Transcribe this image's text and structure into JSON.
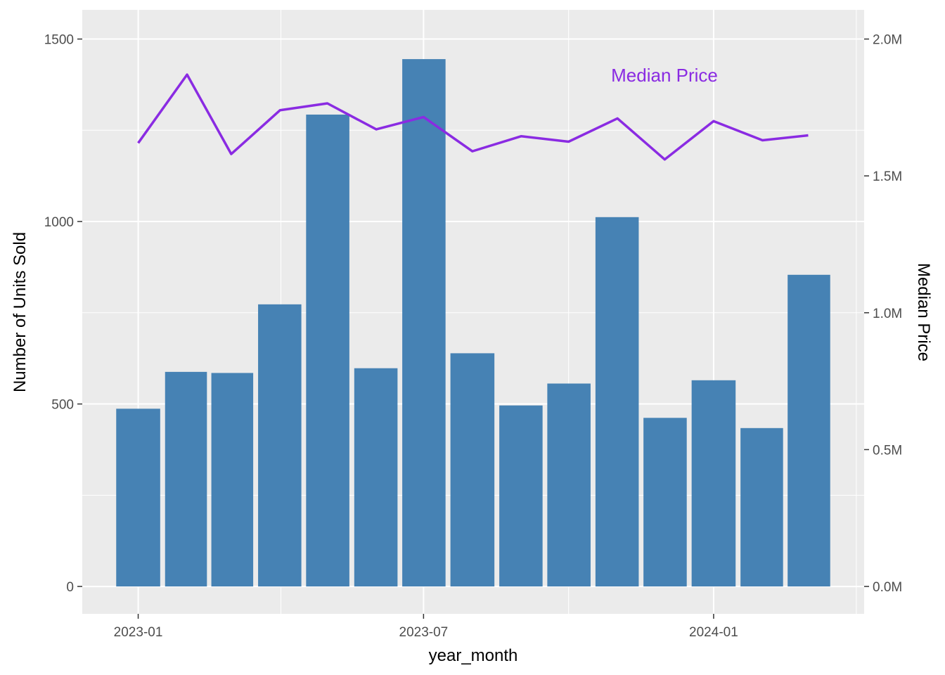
{
  "chart_data": {
    "type": "bar",
    "xlabel": "year_month",
    "ylabel": "Number of Units Sold",
    "y2label": "Median Price",
    "x_ticks": [
      "2023-01",
      "2023-07",
      "2024-01"
    ],
    "y_ticks": [
      "0",
      "500",
      "1000",
      "1500"
    ],
    "y2_ticks": [
      "0.0M",
      "0.5M",
      "1.0M",
      "1.5M",
      "2.0M"
    ],
    "ylim": [
      -75,
      1580
    ],
    "y2lim": [
      -100000,
      2106667
    ],
    "annotation": "Median Price",
    "grid": true,
    "series": [
      {
        "kind": "bar",
        "axis": "left",
        "x": [
          "2023-01",
          "2023-02",
          "2023-03",
          "2023-04",
          "2023-05",
          "2023-06",
          "2023-07",
          "2023-08",
          "2023-09",
          "2023-10",
          "2023-11",
          "2023-12",
          "2024-01",
          "2024-02",
          "2024-03"
        ],
        "values": [
          487,
          588,
          585,
          773,
          1293,
          598,
          1445,
          639,
          496,
          556,
          1012,
          462,
          565,
          434,
          854
        ],
        "color": "#4682b4"
      },
      {
        "kind": "line",
        "axis": "right",
        "x": [
          "2023-01",
          "2023-02",
          "2023-03",
          "2023-04",
          "2023-05",
          "2023-06",
          "2023-07",
          "2023-08",
          "2023-09",
          "2023-10",
          "2023-11",
          "2023-12",
          "2024-01",
          "2024-02",
          "2024-03"
        ],
        "values": [
          1620000,
          1870000,
          1580000,
          1740000,
          1765000,
          1670000,
          1715000,
          1590000,
          1645000,
          1625000,
          1710000,
          1560000,
          1700000,
          1630000,
          1648000
        ],
        "color": "#8a2be2"
      }
    ]
  }
}
